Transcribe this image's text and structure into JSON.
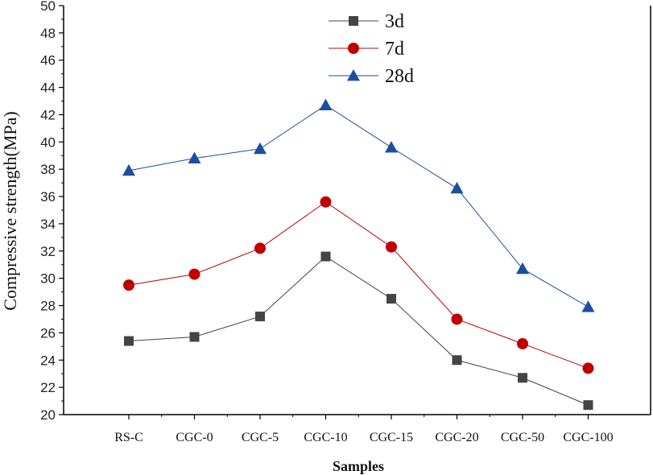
{
  "chart_data": {
    "type": "line",
    "title": "",
    "xlabel": "Samples",
    "ylabel": "Compressive strength(MPa)",
    "ylim": [
      20,
      50
    ],
    "yticks": [
      20,
      22,
      24,
      26,
      28,
      30,
      32,
      34,
      36,
      38,
      40,
      42,
      44,
      46,
      48,
      50
    ],
    "categories": [
      "RS-C",
      "CGC-0",
      "CGC-5",
      "CGC-10",
      "CGC-15",
      "CGC-20",
      "CGC-50",
      "CGC-100"
    ],
    "legend_position": "top-center",
    "grid": false,
    "series": [
      {
        "name": "3d",
        "color": "#444444",
        "marker": "square",
        "values": [
          25.4,
          25.7,
          27.2,
          31.6,
          28.5,
          24.0,
          22.7,
          20.7
        ]
      },
      {
        "name": "7d",
        "color": "#c00000",
        "marker": "circle",
        "values": [
          29.5,
          30.3,
          32.2,
          35.6,
          32.3,
          27.0,
          25.2,
          23.4
        ]
      },
      {
        "name": "28d",
        "color": "#1f4e9c",
        "marker": "triangle",
        "values": [
          37.9,
          38.8,
          39.5,
          42.7,
          39.6,
          36.6,
          30.7,
          27.9
        ]
      }
    ]
  }
}
